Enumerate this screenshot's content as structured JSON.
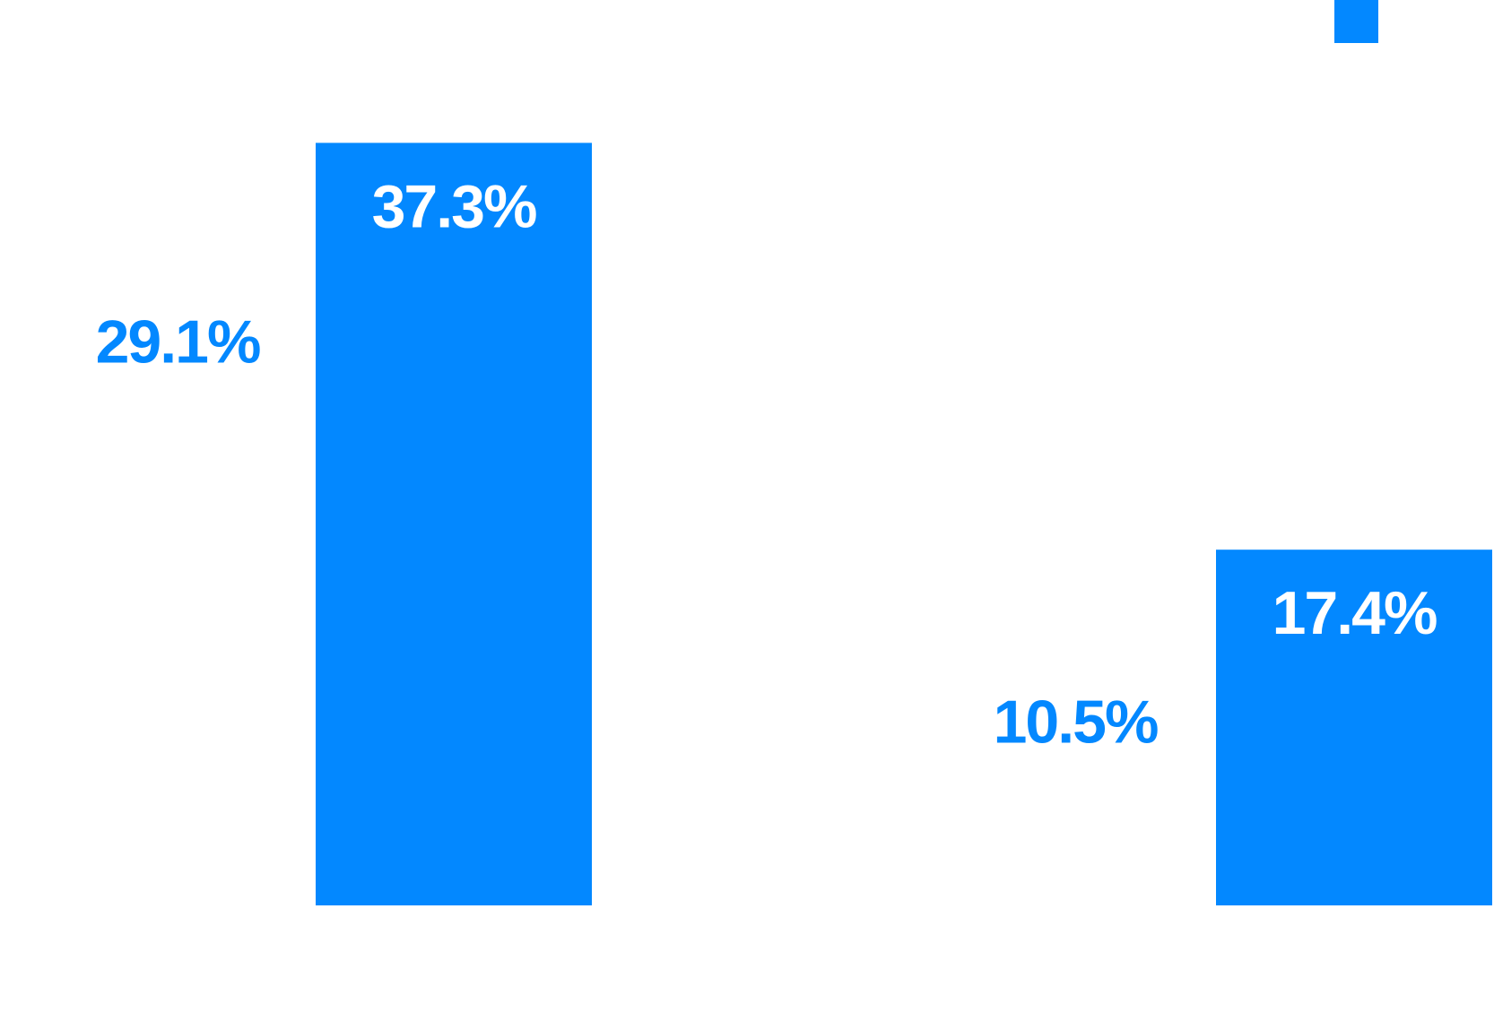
{
  "chart_data": {
    "type": "bar",
    "series": [
      {
        "values": [
          29.1,
          37.3,
          10.5,
          17.4
        ],
        "labels": [
          "29.1%",
          "37.3%",
          "10.5%",
          "17.4%"
        ]
      }
    ],
    "ylim": [
      0,
      38.5
    ],
    "grid": false,
    "legend": "top-right",
    "colors": {
      "bar": "#0388FF",
      "label_inside": "#FFFFFF",
      "label_outside": "#0388FF"
    }
  }
}
